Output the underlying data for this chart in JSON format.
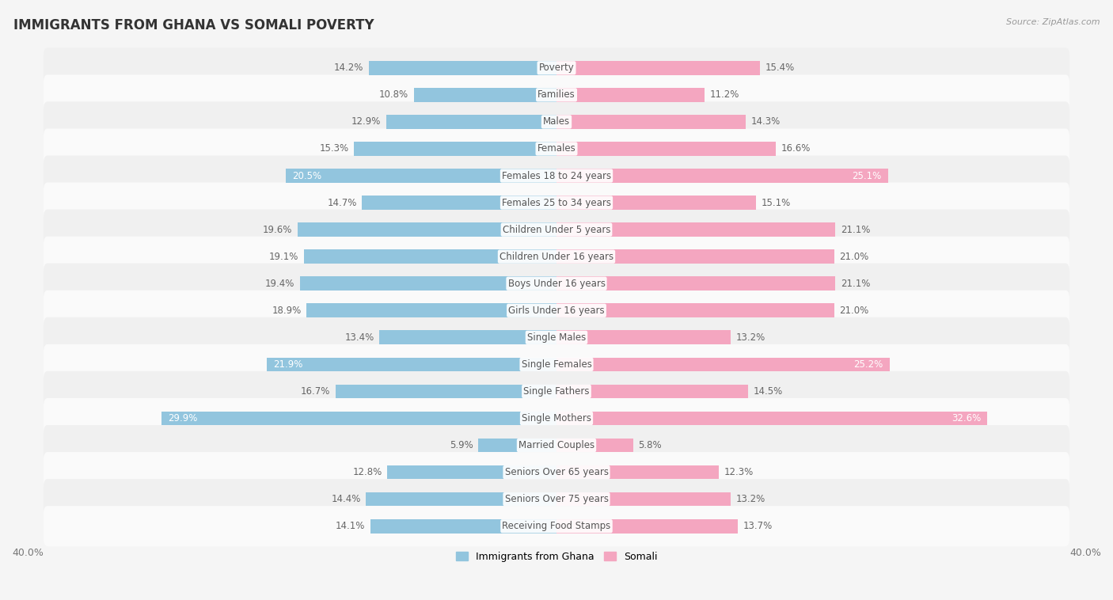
{
  "title": "IMMIGRANTS FROM GHANA VS SOMALI POVERTY",
  "source": "Source: ZipAtlas.com",
  "categories": [
    "Poverty",
    "Families",
    "Males",
    "Females",
    "Females 18 to 24 years",
    "Females 25 to 34 years",
    "Children Under 5 years",
    "Children Under 16 years",
    "Boys Under 16 years",
    "Girls Under 16 years",
    "Single Males",
    "Single Females",
    "Single Fathers",
    "Single Mothers",
    "Married Couples",
    "Seniors Over 65 years",
    "Seniors Over 75 years",
    "Receiving Food Stamps"
  ],
  "ghana_values": [
    14.2,
    10.8,
    12.9,
    15.3,
    20.5,
    14.7,
    19.6,
    19.1,
    19.4,
    18.9,
    13.4,
    21.9,
    16.7,
    29.9,
    5.9,
    12.8,
    14.4,
    14.1
  ],
  "somali_values": [
    15.4,
    11.2,
    14.3,
    16.6,
    25.1,
    15.1,
    21.1,
    21.0,
    21.1,
    21.0,
    13.2,
    25.2,
    14.5,
    32.6,
    5.8,
    12.3,
    13.2,
    13.7
  ],
  "ghana_color": "#92c5de",
  "somali_color": "#f4a6c0",
  "ghana_label": "Immigrants from Ghana",
  "somali_label": "Somali",
  "x_max": 40.0,
  "row_bg_odd": "#f0f0f0",
  "row_bg_even": "#fafafa",
  "title_fontsize": 12,
  "label_fontsize": 8.5,
  "value_fontsize": 8.5,
  "white_text_indices_ghana": [
    4,
    11,
    13
  ],
  "white_text_indices_somali": [
    4,
    11,
    13
  ]
}
